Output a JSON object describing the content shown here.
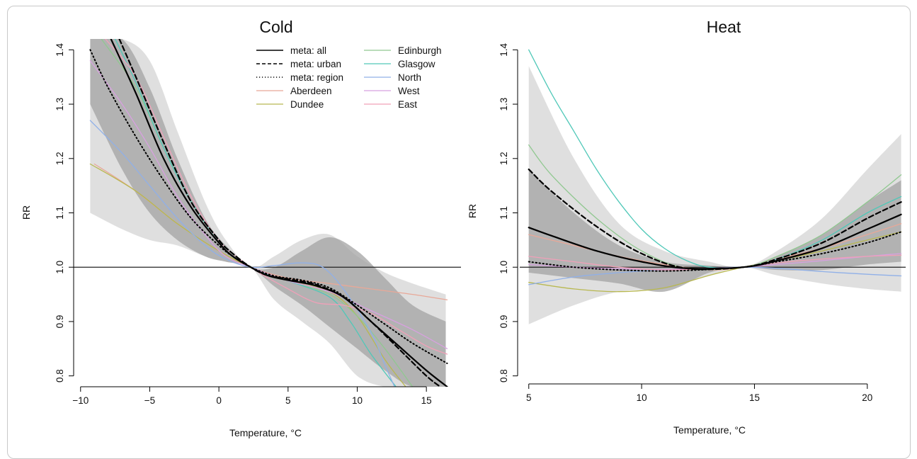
{
  "chart_data": [
    {
      "type": "line",
      "title": "Cold",
      "xlabel": "Temperature, °C",
      "ylabel": "RR",
      "xlim": [
        -10.5,
        17.5
      ],
      "ylim": [
        0.78,
        1.42
      ],
      "xticks": [
        -10,
        -5,
        0,
        5,
        10,
        15
      ],
      "yticks": [
        0.8,
        0.9,
        1.0,
        1.1,
        1.2,
        1.3,
        1.4
      ],
      "reference_line": 1.0,
      "legend_placement": "top-right",
      "legend": [
        {
          "name": "meta: all",
          "style": "solid-black"
        },
        {
          "name": "meta: urban",
          "style": "dashed-black"
        },
        {
          "name": "meta: region",
          "style": "dotted-black"
        },
        {
          "name": "Aberdeen",
          "color": "#e8a898"
        },
        {
          "name": "Dundee",
          "color": "#b8b850"
        },
        {
          "name": "Edinburgh",
          "color": "#90c890"
        },
        {
          "name": "Glasgow",
          "color": "#50c8b8"
        },
        {
          "name": "North",
          "color": "#90b0e8"
        },
        {
          "name": "West",
          "color": "#d8a0e0"
        },
        {
          "name": "East",
          "color": "#f0a0b8"
        }
      ],
      "bands": [
        {
          "name": "light",
          "x": [
            -9.3,
            -7,
            -5,
            -3,
            -1,
            0.5,
            2.3,
            4,
            6,
            8,
            10,
            12,
            14,
            16.4
          ],
          "upper": [
            1.42,
            1.42,
            1.38,
            1.25,
            1.12,
            1.05,
            1.0,
            1.02,
            1.05,
            1.06,
            1.02,
            0.99,
            0.97,
            0.95
          ],
          "lower": [
            1.1,
            1.07,
            1.05,
            1.04,
            1.02,
            1.01,
            1.0,
            0.94,
            0.9,
            0.86,
            0.8,
            0.78,
            0.78,
            0.78
          ]
        },
        {
          "name": "dark",
          "x": [
            -9.3,
            -7,
            -5,
            -3,
            -1,
            0.5,
            2.3,
            4,
            6,
            8,
            10,
            12,
            14,
            16.4
          ],
          "upper": [
            1.42,
            1.42,
            1.33,
            1.2,
            1.09,
            1.04,
            1.0,
            1.0,
            1.03,
            1.055,
            1.03,
            0.98,
            0.93,
            0.9
          ],
          "lower": [
            1.3,
            1.18,
            1.1,
            1.05,
            1.02,
            1.01,
            1.0,
            0.965,
            0.93,
            0.89,
            0.85,
            0.81,
            0.78,
            0.78
          ]
        }
      ],
      "series": [
        {
          "name": "meta: all",
          "style": "solid-black",
          "x": [
            -7.8,
            -6,
            -4,
            -2,
            0,
            1,
            2.3,
            3.5,
            5,
            7,
            9,
            11,
            13,
            15,
            16.5
          ],
          "y": [
            1.42,
            1.32,
            1.2,
            1.11,
            1.045,
            1.02,
            1.0,
            0.985,
            0.976,
            0.966,
            0.945,
            0.9,
            0.855,
            0.81,
            0.78
          ]
        },
        {
          "name": "meta: urban",
          "style": "dashed-black",
          "x": [
            -7.2,
            -6,
            -4,
            -2,
            0,
            1,
            2.3,
            3.5,
            5,
            7,
            9,
            11,
            13,
            15,
            16
          ],
          "y": [
            1.42,
            1.35,
            1.23,
            1.12,
            1.05,
            1.025,
            1.0,
            0.985,
            0.978,
            0.968,
            0.945,
            0.9,
            0.85,
            0.8,
            0.78
          ]
        },
        {
          "name": "meta: region",
          "style": "dotted-black",
          "x": [
            -9.3,
            -8,
            -6,
            -4,
            -2,
            0,
            1,
            2.3,
            4,
            6,
            8,
            10,
            12,
            14,
            16.5
          ],
          "y": [
            1.4,
            1.33,
            1.24,
            1.16,
            1.09,
            1.04,
            1.02,
            1.0,
            0.984,
            0.976,
            0.962,
            0.93,
            0.895,
            0.86,
            0.823
          ]
        },
        {
          "name": "Aberdeen",
          "color": "#e8a898",
          "x": [
            -9,
            -6,
            -3,
            0,
            2.3,
            5,
            8,
            11,
            14,
            16.5
          ],
          "y": [
            1.19,
            1.14,
            1.08,
            1.03,
            1.0,
            0.98,
            0.97,
            0.96,
            0.95,
            0.94
          ]
        },
        {
          "name": "Dundee",
          "color": "#b8b850",
          "x": [
            -9.3,
            -6,
            -3,
            0,
            2.3,
            5,
            8,
            10,
            12,
            13.5
          ],
          "y": [
            1.19,
            1.14,
            1.08,
            1.03,
            1.0,
            0.975,
            0.955,
            0.91,
            0.83,
            0.78
          ]
        },
        {
          "name": "Edinburgh",
          "color": "#90c890",
          "x": [
            -8.5,
            -6,
            -4,
            -2,
            0,
            2.3,
            5,
            8,
            10,
            12,
            14
          ],
          "y": [
            1.42,
            1.33,
            1.22,
            1.12,
            1.05,
            1.0,
            0.975,
            0.95,
            0.91,
            0.85,
            0.78
          ]
        },
        {
          "name": "Glasgow",
          "color": "#50c8b8",
          "x": [
            -7.5,
            -6,
            -4,
            -2,
            0,
            2.3,
            5,
            8,
            9.5,
            11,
            12.8
          ],
          "y": [
            1.42,
            1.34,
            1.22,
            1.12,
            1.05,
            1.0,
            0.975,
            0.945,
            0.9,
            0.84,
            0.78
          ]
        },
        {
          "name": "North",
          "color": "#90b0e8",
          "x": [
            -9.3,
            -7,
            -5,
            -3,
            -1,
            0.5,
            2.3,
            4,
            6,
            7.5,
            9,
            11,
            12,
            12.7
          ],
          "y": [
            1.27,
            1.21,
            1.15,
            1.09,
            1.04,
            1.015,
            1.0,
            1.003,
            1.008,
            1.0,
            0.96,
            0.88,
            0.82,
            0.78
          ]
        },
        {
          "name": "West",
          "color": "#d8a0e0",
          "x": [
            -9.3,
            -7,
            -5,
            -3,
            -1,
            0.5,
            2.3,
            5,
            8,
            11,
            14,
            16.5
          ],
          "y": [
            1.38,
            1.3,
            1.22,
            1.13,
            1.06,
            1.02,
            1.0,
            0.975,
            0.955,
            0.92,
            0.885,
            0.85
          ]
        },
        {
          "name": "East",
          "color": "#f0a0b8",
          "x": [
            -8.2,
            -6,
            -4,
            -2,
            0,
            2.3,
            5,
            7,
            9,
            11,
            13,
            15,
            16.5
          ],
          "y": [
            1.42,
            1.35,
            1.24,
            1.13,
            1.05,
            1.0,
            0.96,
            0.935,
            0.93,
            0.915,
            0.885,
            0.855,
            0.84
          ]
        }
      ]
    },
    {
      "type": "line",
      "title": "Heat",
      "xlabel": "Temperature, °C",
      "ylabel": "RR",
      "xlim": [
        4.6,
        21.7
      ],
      "ylim": [
        0.78,
        1.42
      ],
      "xticks": [
        5,
        10,
        15,
        20
      ],
      "yticks": [
        0.8,
        0.9,
        1.0,
        1.1,
        1.2,
        1.3,
        1.4
      ],
      "reference_line": 1.0,
      "bands": [
        {
          "name": "light",
          "x": [
            5,
            7,
            9,
            11,
            13,
            14.5,
            16,
            18,
            20,
            21.5
          ],
          "upper": [
            1.37,
            1.2,
            1.08,
            1.03,
            1.01,
            1.0,
            1.03,
            1.09,
            1.18,
            1.245
          ],
          "lower": [
            0.895,
            0.93,
            0.955,
            0.96,
            0.985,
            1.0,
            0.985,
            0.97,
            0.96,
            0.955
          ]
        },
        {
          "name": "dark",
          "x": [
            5,
            7,
            9,
            11,
            13,
            14.5,
            16,
            18,
            20,
            21.5
          ],
          "upper": [
            1.18,
            1.1,
            1.04,
            1.01,
            1.003,
            1.0,
            1.02,
            1.06,
            1.12,
            1.16
          ],
          "lower": [
            0.99,
            0.98,
            0.97,
            0.955,
            0.99,
            1.0,
            0.995,
            0.995,
            1.005,
            1.01
          ]
        }
      ],
      "series": [
        {
          "name": "meta: all",
          "style": "solid-black",
          "x": [
            5,
            6,
            8,
            10,
            12,
            14.5,
            16,
            18,
            20,
            21.5
          ],
          "y": [
            1.073,
            1.058,
            1.03,
            1.01,
            0.998,
            1.0,
            1.012,
            1.035,
            1.07,
            1.097
          ]
        },
        {
          "name": "meta: urban",
          "style": "dashed-black",
          "x": [
            5,
            6,
            8,
            10,
            12,
            14.5,
            16,
            18,
            20,
            21.5
          ],
          "y": [
            1.18,
            1.14,
            1.075,
            1.025,
            0.998,
            1.0,
            1.015,
            1.045,
            1.09,
            1.12
          ]
        },
        {
          "name": "meta: region",
          "style": "dotted-black",
          "x": [
            5,
            7,
            9,
            11,
            13,
            14.5,
            16,
            18,
            20,
            21.5
          ],
          "y": [
            1.01,
            1.0,
            0.995,
            0.993,
            0.996,
            1.0,
            1.01,
            1.025,
            1.045,
            1.065
          ]
        },
        {
          "name": "Aberdeen",
          "color": "#e8a898",
          "x": [
            5,
            7,
            9,
            11,
            13,
            14.5,
            16,
            18,
            20,
            21.5
          ],
          "y": [
            1.06,
            1.04,
            1.02,
            1.005,
            0.995,
            1.0,
            1.015,
            1.035,
            1.06,
            1.08
          ]
        },
        {
          "name": "Dundee",
          "color": "#b8b850",
          "x": [
            5,
            7,
            9,
            11,
            13,
            14.5,
            16,
            18,
            20,
            21.5
          ],
          "y": [
            0.972,
            0.96,
            0.955,
            0.962,
            0.985,
            1.0,
            1.012,
            1.03,
            1.05,
            1.065
          ]
        },
        {
          "name": "Edinburgh",
          "color": "#90c890",
          "x": [
            5,
            6,
            8,
            10,
            12,
            14.5,
            16,
            18,
            20,
            21.5
          ],
          "y": [
            1.225,
            1.17,
            1.09,
            1.03,
            0.998,
            1.0,
            1.02,
            1.06,
            1.12,
            1.17
          ]
        },
        {
          "name": "Glasgow",
          "color": "#50c8b8",
          "x": [
            5,
            6,
            7,
            8,
            9,
            10,
            11,
            12,
            13,
            14.5,
            16,
            18,
            20,
            21.5
          ],
          "y": [
            1.4,
            1.32,
            1.25,
            1.18,
            1.12,
            1.07,
            1.035,
            1.012,
            1.0,
            1.0,
            1.015,
            1.05,
            1.1,
            1.13
          ]
        },
        {
          "name": "North",
          "color": "#90b0e8",
          "x": [
            5,
            7,
            9,
            11,
            13,
            14.5,
            16,
            18,
            20,
            21.5
          ],
          "y": [
            0.968,
            0.982,
            0.99,
            0.995,
            0.998,
            1.0,
            0.998,
            0.992,
            0.987,
            0.984
          ]
        },
        {
          "name": "West",
          "color": "#d8a0e0",
          "x": [
            5,
            7,
            9,
            11,
            13,
            14.5,
            16,
            18,
            20,
            21.5
          ],
          "y": [
            1.005,
            1.0,
            0.997,
            0.996,
            0.998,
            1.0,
            1.005,
            1.012,
            1.02,
            1.025
          ]
        },
        {
          "name": "East",
          "color": "#f0a0b8",
          "x": [
            5,
            7,
            9,
            11,
            13,
            14.5,
            16,
            18,
            20,
            21.5
          ],
          "y": [
            1.02,
            1.01,
            1.0,
            0.995,
            0.997,
            1.0,
            1.008,
            1.015,
            1.02,
            1.022
          ]
        }
      ]
    }
  ]
}
